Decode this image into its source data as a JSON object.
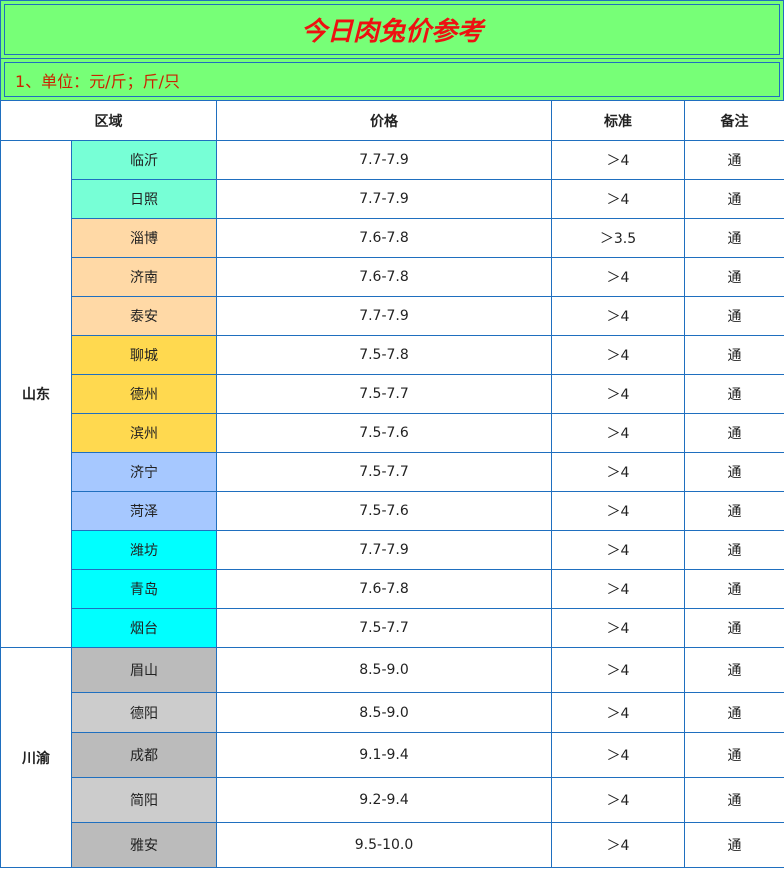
{
  "header": {
    "title": "今日肉兔价参考",
    "unit": "1、单位：元/斤；斤/只"
  },
  "table": {
    "columns": [
      "区域",
      "价格",
      "标准",
      "备注"
    ],
    "groups": [
      {
        "region": "山东",
        "rows": [
          [
            "临沂",
            "7.7-7.9",
            "＞4",
            "通"
          ],
          [
            "日照",
            "7.7-7.9",
            "＞4",
            "通"
          ],
          [
            "淄博",
            "7.6-7.8",
            "＞3.5",
            "通"
          ],
          [
            "济南",
            "7.6-7.8",
            "＞4",
            "通"
          ],
          [
            "泰安",
            "7.7-7.9",
            "＞4",
            "通"
          ],
          [
            "聊城",
            "7.5-7.8",
            "＞4",
            "通"
          ],
          [
            "德州",
            "7.5-7.7",
            "＞4",
            "通"
          ],
          [
            "滨州",
            "7.5-7.6",
            "＞4",
            "通"
          ],
          [
            "济宁",
            "7.5-7.7",
            "＞4",
            "通"
          ],
          [
            "菏泽",
            "7.5-7.6",
            "＞4",
            "通"
          ],
          [
            "潍坊",
            "7.7-7.9",
            "＞4",
            "通"
          ],
          [
            "青岛",
            "7.6-7.8",
            "＞4",
            "通"
          ],
          [
            "烟台",
            "7.5-7.7",
            "＞4",
            "通"
          ]
        ]
      },
      {
        "region": "川渝",
        "rows": [
          [
            "眉山",
            "8.5-9.0",
            "＞4",
            "通"
          ],
          [
            "德阳",
            "8.5-9.0",
            "＞4",
            "通"
          ],
          [
            "成都",
            "9.1-9.4",
            "＞4",
            "通"
          ],
          [
            "简阳",
            "9.2-9.4",
            "＞4",
            "通"
          ],
          [
            "雅安",
            "9.5-10.0",
            "＞4",
            "通"
          ]
        ]
      }
    ]
  }
}
